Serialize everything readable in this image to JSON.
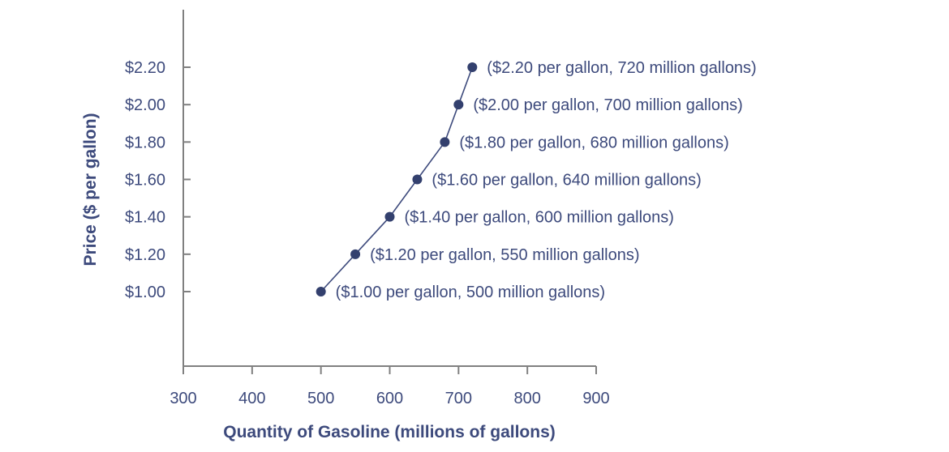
{
  "chart_data": {
    "type": "line",
    "title": "",
    "xlabel": "Quantity of Gasoline (millions of gallons)",
    "ylabel": "Price ($ per gallon)",
    "xlim": [
      300,
      900
    ],
    "x_ticks": [
      300,
      400,
      500,
      600,
      700,
      800,
      900
    ],
    "y_ticks": [
      1.0,
      1.2,
      1.4,
      1.6,
      1.8,
      2.0,
      2.2
    ],
    "y_tick_labels": [
      "$1.00",
      "$1.20",
      "$1.40",
      "$1.60",
      "$1.80",
      "$2.00",
      "$2.20"
    ],
    "grid": false,
    "legend": "none",
    "series": [
      {
        "x": [
          500,
          550,
          600,
          640,
          680,
          700,
          720
        ],
        "y": [
          1.0,
          1.2,
          1.4,
          1.6,
          1.8,
          2.0,
          2.2
        ],
        "point_labels": [
          "($1.00 per gallon, 500 million gallons)",
          "($1.20 per gallon, 550 million gallons)",
          "($1.40 per gallon, 600 million gallons)",
          "($1.60 per gallon, 640 million gallons)",
          "($1.80 per gallon, 680 million gallons)",
          "($2.00 per gallon, 700 million gallons)",
          "($2.20 per gallon, 720 million gallons)"
        ]
      }
    ],
    "colors": {
      "text": "#3d4a7c",
      "axis": "#808080",
      "line": "#3d4a7c",
      "point": "#33406e"
    }
  }
}
